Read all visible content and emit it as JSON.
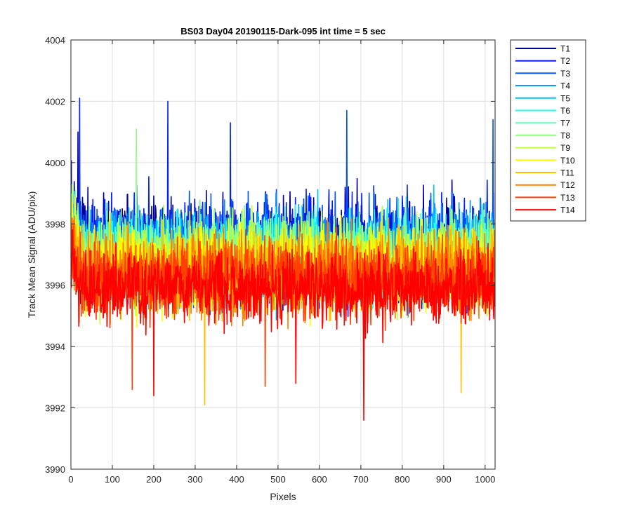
{
  "chart_data": {
    "type": "line",
    "title": "BS03 Day04 20190115-Dark-095 int time = 5 sec",
    "xlabel": "Pixels",
    "ylabel": "Track Mean Signal (ADU/pix)",
    "xlim": [
      0,
      1024
    ],
    "ylim": [
      3990,
      4004
    ],
    "x_ticks": [
      0,
      100,
      200,
      300,
      400,
      500,
      600,
      700,
      800,
      900,
      1000
    ],
    "y_ticks": [
      3990,
      3992,
      3994,
      3996,
      3998,
      4000,
      4002,
      4004
    ],
    "grid": true,
    "legend_position": "outside-top-right",
    "series": [
      {
        "name": "T1",
        "color": "#00009f",
        "mean": 3997.3,
        "noise": 1.25
      },
      {
        "name": "T2",
        "color": "#0020ff",
        "mean": 3997.2,
        "noise": 1.25
      },
      {
        "name": "T3",
        "color": "#0050ff",
        "mean": 3997.1,
        "noise": 1.2
      },
      {
        "name": "T4",
        "color": "#0090ff",
        "mean": 3997.0,
        "noise": 1.2
      },
      {
        "name": "T5",
        "color": "#00c0ff",
        "mean": 3997.0,
        "noise": 1.15
      },
      {
        "name": "T6",
        "color": "#20ffee",
        "mean": 3996.9,
        "noise": 1.15
      },
      {
        "name": "T7",
        "color": "#60ffc0",
        "mean": 3996.8,
        "noise": 1.1
      },
      {
        "name": "T8",
        "color": "#90ff80",
        "mean": 3996.8,
        "noise": 1.1
      },
      {
        "name": "T9",
        "color": "#c0ff40",
        "mean": 3996.7,
        "noise": 1.1
      },
      {
        "name": "T10",
        "color": "#ffff00",
        "mean": 3996.6,
        "noise": 1.1
      },
      {
        "name": "T11",
        "color": "#ffc000",
        "mean": 3996.5,
        "noise": 1.05
      },
      {
        "name": "T12",
        "color": "#ff8000",
        "mean": 3996.4,
        "noise": 1.05
      },
      {
        "name": "T13",
        "color": "#ff4000",
        "mean": 3996.2,
        "noise": 1.0
      },
      {
        "name": "T14",
        "color": "#ff0000",
        "mean": 3995.9,
        "noise": 0.95
      }
    ],
    "points_per_series": 1024,
    "spikes": [
      {
        "series": "T2",
        "x": 20,
        "y": 4002.1
      },
      {
        "series": "T2",
        "x": 233,
        "y": 4002.0
      },
      {
        "series": "T1",
        "x": 16,
        "y": 4001.0
      },
      {
        "series": "T2",
        "x": 384,
        "y": 4001.3
      },
      {
        "series": "T3",
        "x": 665,
        "y": 4001.7
      },
      {
        "series": "T3",
        "x": 1018,
        "y": 4001.4
      },
      {
        "series": "T8",
        "x": 157,
        "y": 4001.1
      },
      {
        "series": "T11",
        "x": 322,
        "y": 3992.1
      },
      {
        "series": "T14",
        "x": 706,
        "y": 3991.6
      },
      {
        "series": "T14",
        "x": 199,
        "y": 3992.4
      },
      {
        "series": "T13",
        "x": 147,
        "y": 3992.6
      },
      {
        "series": "T11",
        "x": 941,
        "y": 3992.5
      },
      {
        "series": "T13",
        "x": 468,
        "y": 3992.7
      },
      {
        "series": "T14",
        "x": 542,
        "y": 3992.8
      }
    ]
  }
}
